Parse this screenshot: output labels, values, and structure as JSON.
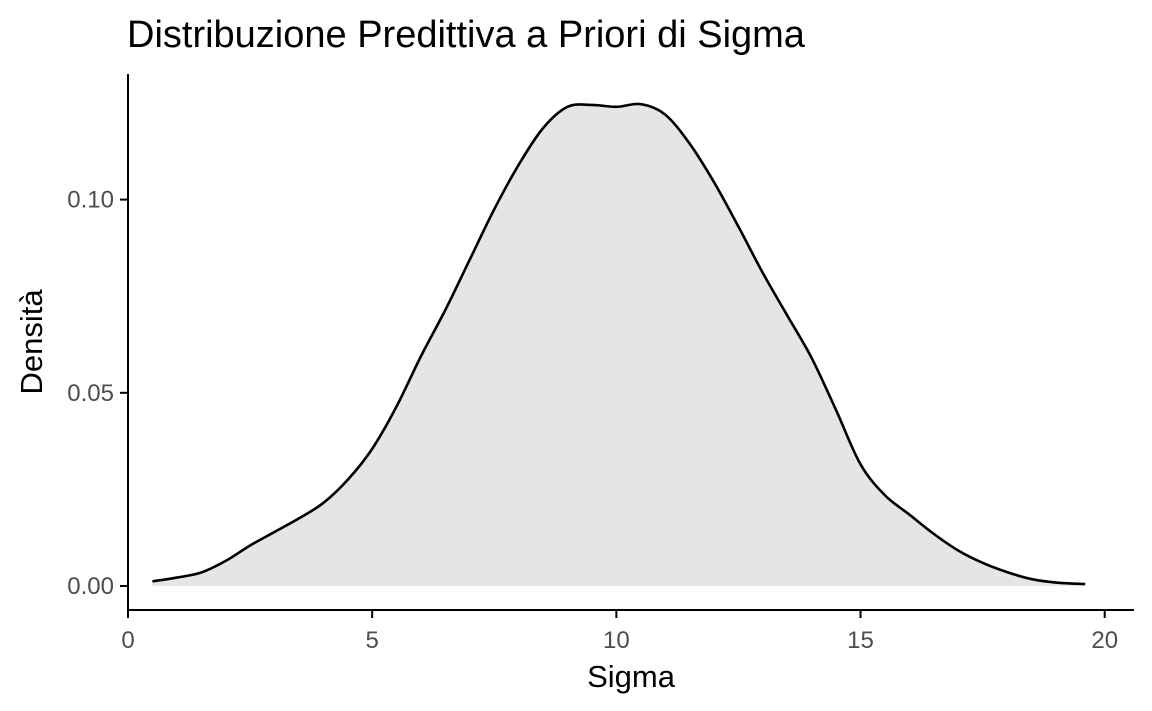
{
  "chart_data": {
    "type": "area",
    "title": "Distribuzione Predittiva a Priori di Sigma",
    "xlabel": "Sigma",
    "ylabel": "Densità",
    "xlim": [
      0,
      20.6
    ],
    "ylim": [
      -0.0062,
      0.1325
    ],
    "x_ticks": [
      0,
      5,
      10,
      15,
      20
    ],
    "x_tick_labels": [
      "0",
      "5",
      "10",
      "15",
      "20"
    ],
    "y_ticks": [
      0.0,
      0.05,
      0.1
    ],
    "y_tick_labels": [
      "0.00",
      "0.05",
      "0.10"
    ],
    "grid": false,
    "legend": "none",
    "fill_color": "#e5e5e5",
    "line_color": "#000000",
    "series": [
      {
        "x": [
          0.5,
          1.0,
          1.5,
          2.0,
          2.5,
          3.0,
          3.5,
          4.0,
          4.5,
          5.0,
          5.5,
          6.0,
          6.5,
          7.0,
          7.5,
          8.0,
          8.5,
          9.0,
          9.5,
          10.0,
          10.5,
          11.0,
          11.5,
          12.0,
          12.5,
          13.0,
          13.5,
          14.0,
          14.5,
          15.0,
          15.5,
          16.0,
          16.5,
          17.0,
          17.5,
          18.0,
          18.5,
          19.0,
          19.6
        ],
        "values": [
          0.0012,
          0.0022,
          0.0035,
          0.0065,
          0.0105,
          0.014,
          0.0175,
          0.0215,
          0.0275,
          0.0355,
          0.0465,
          0.0595,
          0.0715,
          0.0845,
          0.0975,
          0.109,
          0.1185,
          0.124,
          0.1245,
          0.124,
          0.1247,
          0.122,
          0.1145,
          0.1045,
          0.093,
          0.081,
          0.07,
          0.059,
          0.0455,
          0.0315,
          0.0235,
          0.0185,
          0.0135,
          0.0092,
          0.006,
          0.0036,
          0.0018,
          0.0009,
          0.0005
        ]
      }
    ]
  }
}
